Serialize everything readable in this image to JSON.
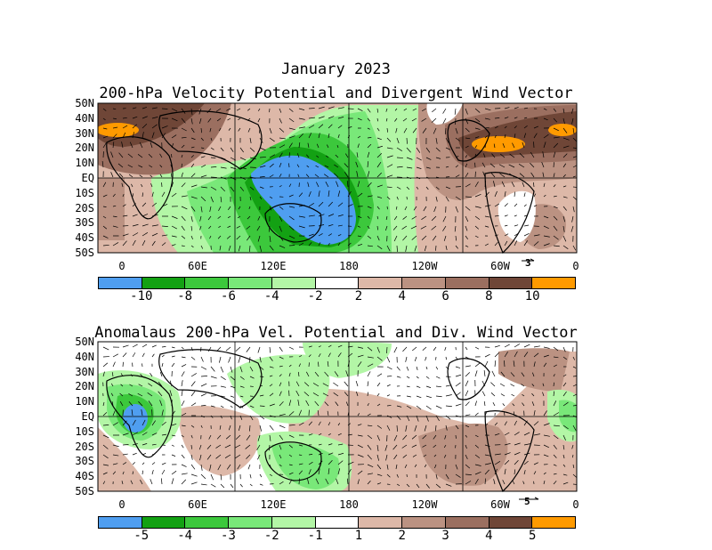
{
  "header": {
    "month_title": "January 2023",
    "panel1_title": "200-hPa Velocity Potential and Divergent Wind Vector",
    "panel2_title": "Anomalaus 200-hPa Vel. Potential and Div. Wind Vector"
  },
  "lat_labels": [
    "50N",
    "40N",
    "30N",
    "20N",
    "10N",
    "EQ",
    "10S",
    "20S",
    "30S",
    "40S",
    "50S"
  ],
  "lon_labels": [
    "0",
    "60E",
    "120E",
    "180",
    "120W",
    "60W",
    "0"
  ],
  "panel1": {
    "ref_vector": "3",
    "colorbar_colors": [
      "#4f9ef0",
      "#13a113",
      "#3cc83c",
      "#79e879",
      "#b3f6a6",
      "#ffffff",
      "#ddb8a8",
      "#bb9282",
      "#9b6f60",
      "#6f4637",
      "#ff9a00"
    ],
    "colorbar_labels": [
      "-10",
      "-8",
      "-6",
      "-4",
      "-2",
      "2",
      "4",
      "6",
      "8",
      "10"
    ]
  },
  "panel2": {
    "ref_vector": "5",
    "colorbar_colors": [
      "#4f9ef0",
      "#13a113",
      "#3cc83c",
      "#79e879",
      "#b3f6a6",
      "#ffffff",
      "#ddb8a8",
      "#bb9282",
      "#9b6f60",
      "#6f4637",
      "#ff9a00"
    ],
    "colorbar_labels": [
      "-5",
      "-4",
      "-3",
      "-2",
      "-1",
      "1",
      "2",
      "3",
      "4",
      "5"
    ]
  }
}
